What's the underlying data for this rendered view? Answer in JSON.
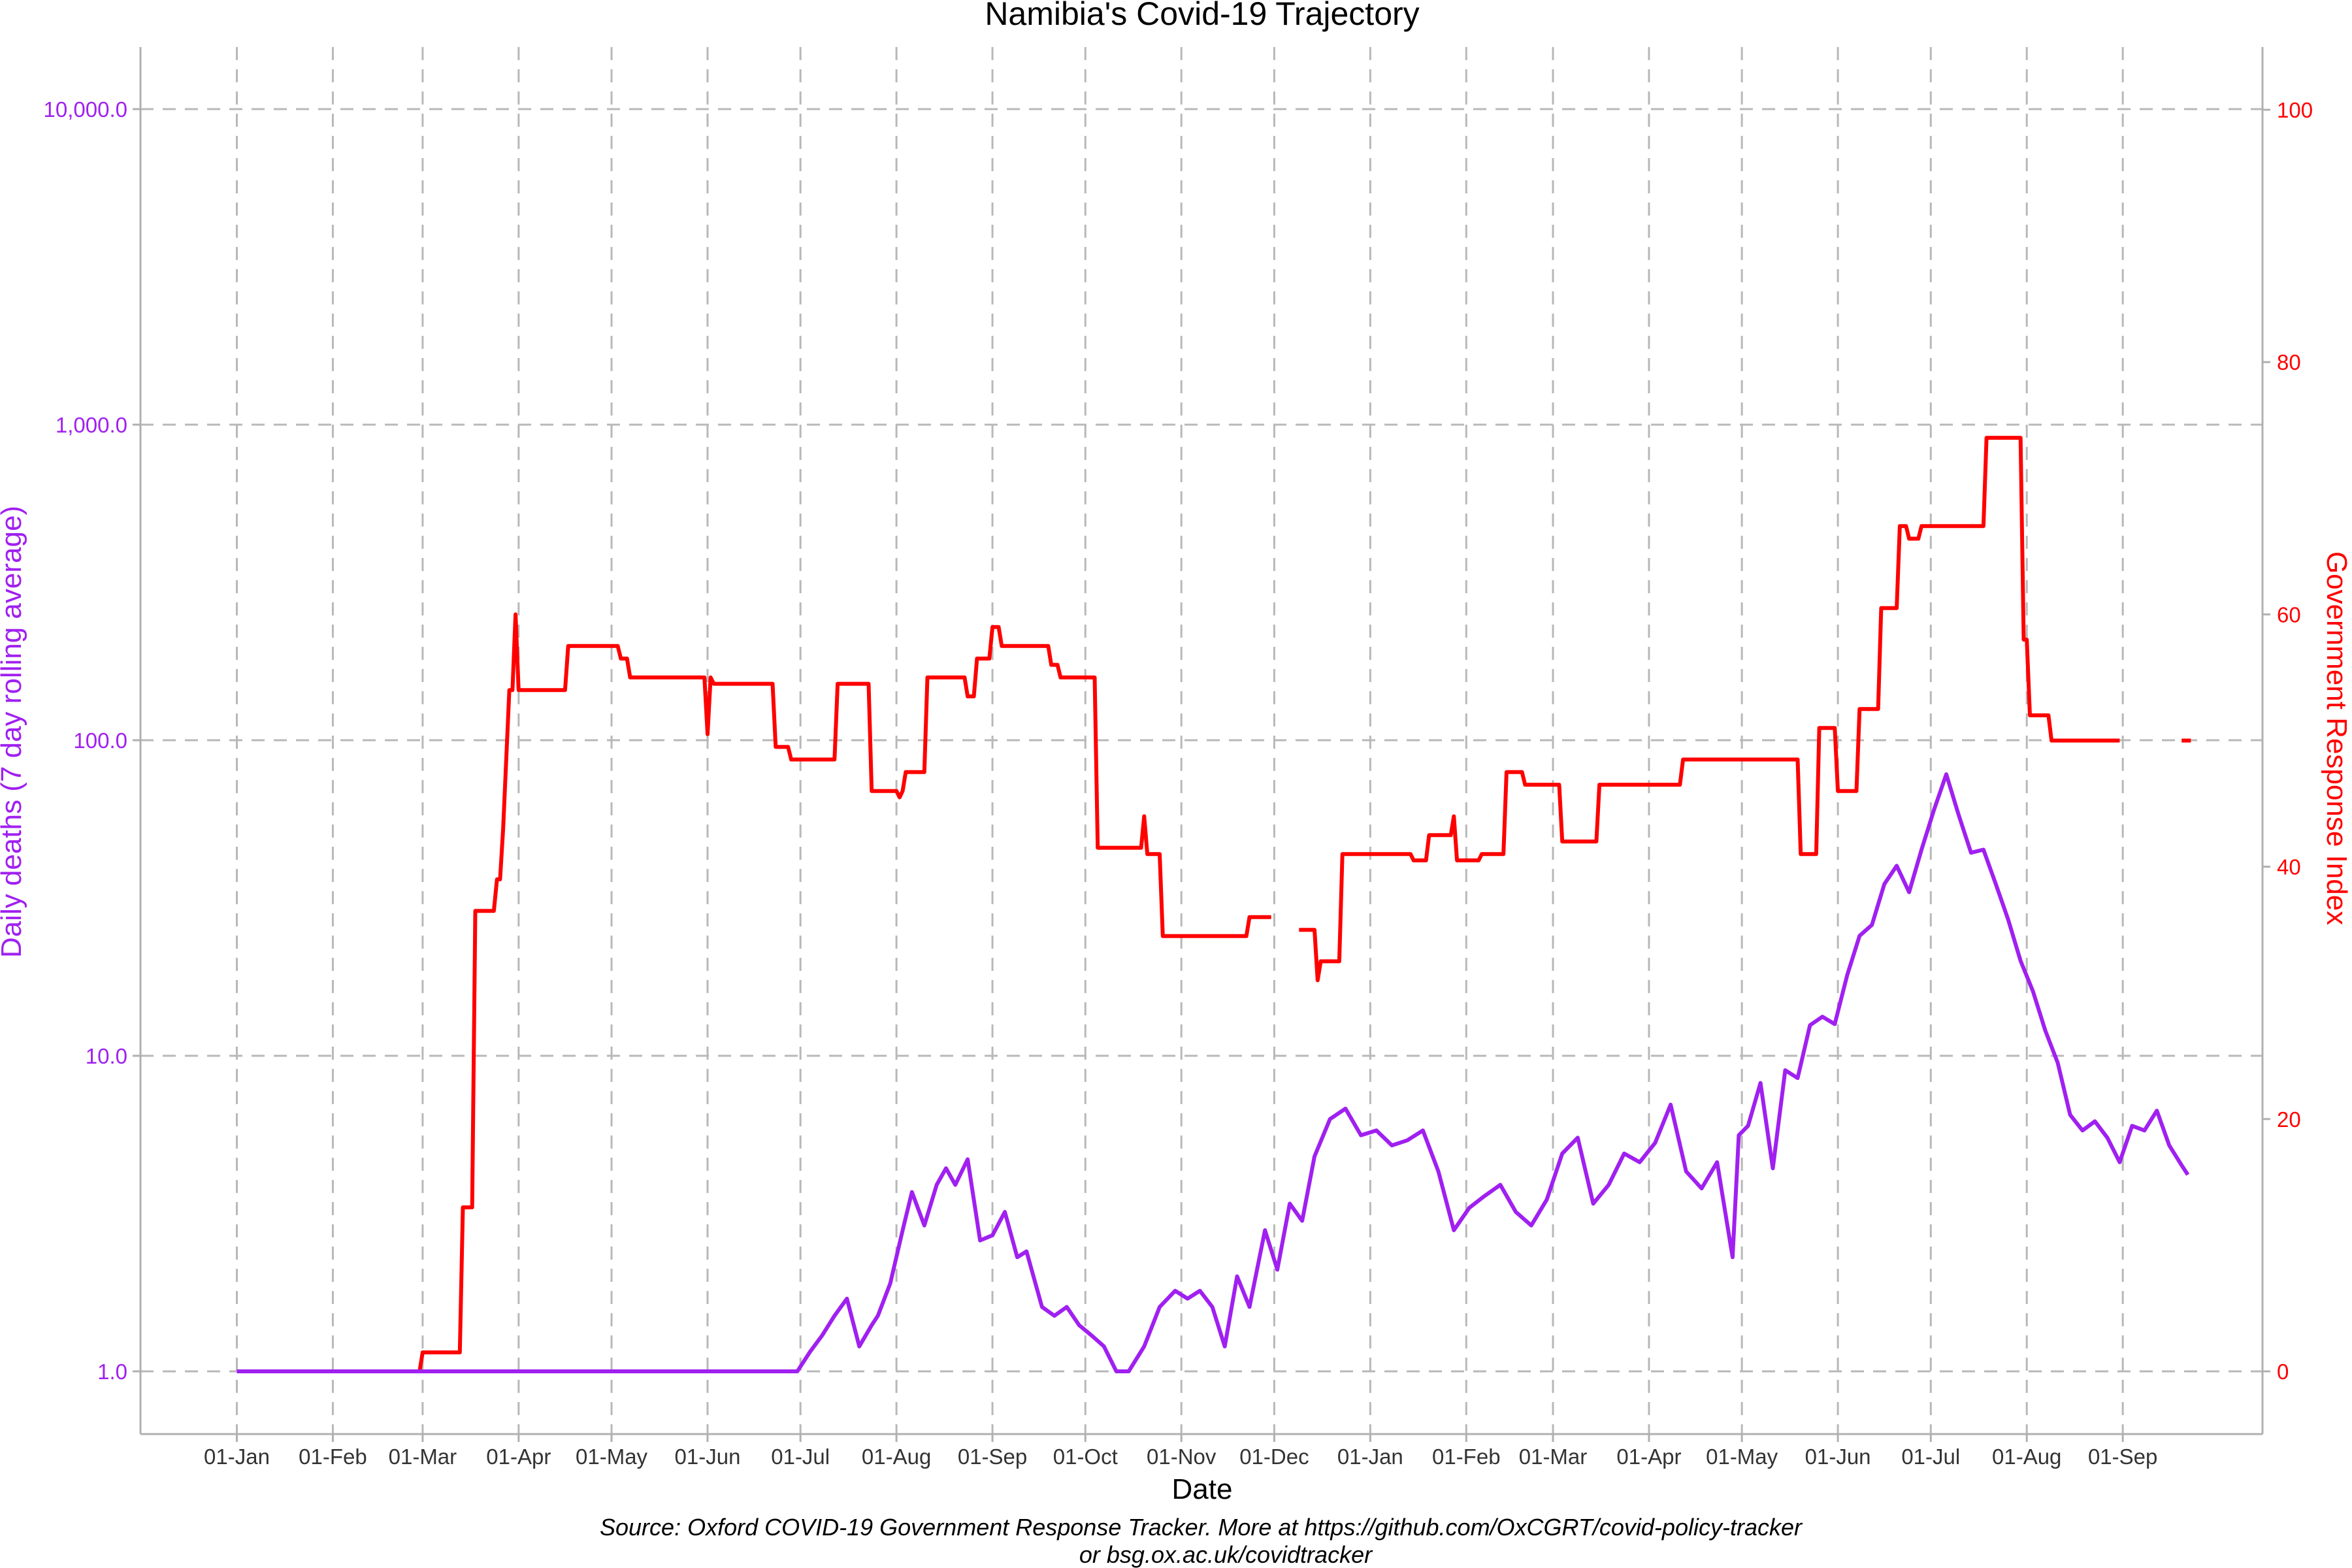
{
  "chart_data": {
    "type": "line",
    "title": "Namibia's Covid-19 Trajectory",
    "xlabel": "Date",
    "ylabel_left": "Daily deaths (7 day rolling average)",
    "ylabel_right": "Government Response Index",
    "caption_line1": "Source: Oxford COVID-19 Government Response Tracker. More at https://github.com/OxCGRT/covid-policy-tracker",
    "caption_line2": "or bsg.ox.ac.uk/covidtracker",
    "grid": true,
    "left_axis": {
      "scale": "log10",
      "color": "#a020f0",
      "ticks": [
        1,
        10,
        100,
        1000,
        10000
      ],
      "tick_labels": [
        "1.0",
        "10.0",
        "100.0",
        "1,000.0",
        "10,000.0"
      ]
    },
    "right_axis": {
      "scale": "linear",
      "color": "#ff0000",
      "range": [
        0,
        100
      ],
      "ticks": [
        0,
        20,
        40,
        60,
        80,
        100
      ],
      "tick_labels": [
        "0",
        "20",
        "40",
        "60",
        "80",
        "100"
      ]
    },
    "x_axis": {
      "tick_dates": [
        "2020-01-01",
        "2020-02-01",
        "2020-03-01",
        "2020-04-01",
        "2020-05-01",
        "2020-06-01",
        "2020-07-01",
        "2020-08-01",
        "2020-09-01",
        "2020-10-01",
        "2020-11-01",
        "2020-12-01",
        "2021-01-01",
        "2021-02-01",
        "2021-03-01",
        "2021-04-01",
        "2021-05-01",
        "2021-06-01",
        "2021-07-01",
        "2021-08-01",
        "2021-09-01"
      ],
      "tick_labels": [
        "01-Jan",
        "01-Feb",
        "01-Mar",
        "01-Apr",
        "01-May",
        "01-Jun",
        "01-Jul",
        "01-Aug",
        "01-Sep",
        "01-Oct",
        "01-Nov",
        "01-Dec",
        "01-Jan",
        "01-Feb",
        "01-Mar",
        "01-Apr",
        "01-May",
        "01-Jun",
        "01-Jul",
        "01-Aug",
        "01-Sep"
      ],
      "range": [
        "2019-12-01",
        "2021-10-25"
      ]
    },
    "series": [
      {
        "axis": "left",
        "color": "#a020f0",
        "x": [
          "2020-01-01",
          "2020-06-30",
          "2020-07-04",
          "2020-07-08",
          "2020-07-12",
          "2020-07-16",
          "2020-07-20",
          "2020-07-24",
          "2020-07-26",
          "2020-07-30",
          "2020-08-03",
          "2020-08-06",
          "2020-08-10",
          "2020-08-14",
          "2020-08-17",
          "2020-08-20",
          "2020-08-24",
          "2020-08-28",
          "2020-09-01",
          "2020-09-05",
          "2020-09-09",
          "2020-09-12",
          "2020-09-17",
          "2020-09-21",
          "2020-09-25",
          "2020-09-29",
          "2020-10-03",
          "2020-10-07",
          "2020-10-11",
          "2020-10-15",
          "2020-10-20",
          "2020-10-25",
          "2020-10-30",
          "2020-11-03",
          "2020-11-07",
          "2020-11-11",
          "2020-11-15",
          "2020-11-19",
          "2020-11-23",
          "2020-11-28",
          "2020-12-02",
          "2020-12-06",
          "2020-12-10",
          "2020-12-14",
          "2020-12-19",
          "2020-12-24",
          "2020-12-29",
          "2021-01-03",
          "2021-01-08",
          "2021-01-13",
          "2021-01-18",
          "2021-01-23",
          "2021-01-28",
          "2021-02-02",
          "2021-02-07",
          "2021-02-12",
          "2021-02-17",
          "2021-02-22",
          "2021-02-27",
          "2021-03-04",
          "2021-03-09",
          "2021-03-14",
          "2021-03-19",
          "2021-03-24",
          "2021-03-29",
          "2021-04-03",
          "2021-04-08",
          "2021-04-13",
          "2021-04-18",
          "2021-04-23",
          "2021-04-28",
          "2021-04-30",
          "2021-05-03",
          "2021-05-07",
          "2021-05-11",
          "2021-05-15",
          "2021-05-19",
          "2021-05-23",
          "2021-05-27",
          "2021-05-31",
          "2021-06-04",
          "2021-06-08",
          "2021-06-12",
          "2021-06-16",
          "2021-06-20",
          "2021-06-24",
          "2021-06-28",
          "2021-07-02",
          "2021-07-06",
          "2021-07-10",
          "2021-07-14",
          "2021-07-18",
          "2021-07-22",
          "2021-07-26",
          "2021-07-30",
          "2021-08-03",
          "2021-08-07",
          "2021-08-11",
          "2021-08-15",
          "2021-08-19",
          "2021-08-23",
          "2021-08-27",
          "2021-08-31",
          "2021-09-04",
          "2021-09-08",
          "2021-09-12",
          "2021-09-16",
          "2021-09-20",
          "2021-09-22"
        ],
        "values": [
          1,
          1,
          1.15,
          1.3,
          1.5,
          1.7,
          1.2,
          1.4,
          1.5,
          1.9,
          2.8,
          3.7,
          2.9,
          3.9,
          4.4,
          3.9,
          4.7,
          2.6,
          2.7,
          3.2,
          2.3,
          2.4,
          1.6,
          1.5,
          1.6,
          1.4,
          1.3,
          1.2,
          1.0,
          1.0,
          1.2,
          1.6,
          1.8,
          1.7,
          1.8,
          1.6,
          1.2,
          2.0,
          1.6,
          2.8,
          2.1,
          3.4,
          3.0,
          4.8,
          6.3,
          6.8,
          5.6,
          5.8,
          5.2,
          5.4,
          5.8,
          4.3,
          2.8,
          3.3,
          3.6,
          3.9,
          3.2,
          2.9,
          3.5,
          4.9,
          5.5,
          3.4,
          3.9,
          4.9,
          4.6,
          5.3,
          7.0,
          4.3,
          3.8,
          4.6,
          2.3,
          5.6,
          6.0,
          8.2,
          4.4,
          9.0,
          8.5,
          12.5,
          13.3,
          12.6,
          18,
          24,
          26,
          35,
          40,
          33,
          45,
          60,
          78,
          58,
          44,
          45,
          35,
          27,
          20,
          16,
          12,
          9.5,
          6.5,
          5.8,
          6.2,
          5.5,
          4.6,
          6.0,
          5.8,
          6.7,
          5.2,
          4.5,
          4.2
        ]
      },
      {
        "axis": "right",
        "color": "#ff0000",
        "segments": [
          {
            "x": [
              "2020-01-01",
              "2020-02-29",
              "2020-03-01",
              "2020-03-13",
              "2020-03-14",
              "2020-03-17",
              "2020-03-18",
              "2020-03-24",
              "2020-03-25",
              "2020-03-26",
              "2020-03-27",
              "2020-03-29",
              "2020-03-30",
              "2020-03-31",
              "2020-04-01",
              "2020-04-02",
              "2020-04-16",
              "2020-04-17",
              "2020-05-03",
              "2020-05-04",
              "2020-05-06",
              "2020-05-07",
              "2020-05-31",
              "2020-06-01",
              "2020-06-02",
              "2020-06-03",
              "2020-06-22",
              "2020-06-23",
              "2020-06-27",
              "2020-06-28",
              "2020-07-12",
              "2020-07-13",
              "2020-07-23",
              "2020-07-24",
              "2020-08-01",
              "2020-08-02",
              "2020-08-03",
              "2020-08-04",
              "2020-08-10",
              "2020-08-11",
              "2020-08-23",
              "2020-08-24",
              "2020-08-26",
              "2020-08-27",
              "2020-08-31",
              "2020-09-01",
              "2020-09-03",
              "2020-09-04",
              "2020-09-19",
              "2020-09-20",
              "2020-09-22",
              "2020-09-23",
              "2020-10-04",
              "2020-10-05",
              "2020-10-19",
              "2020-10-20",
              "2020-10-21",
              "2020-10-25",
              "2020-10-26",
              "2020-11-22",
              "2020-11-23",
              "2020-11-30"
            ],
            "values": [
              0,
              0,
              1.5,
              1.5,
              13,
              13,
              36.5,
              36.5,
              39,
              39,
              43,
              54,
              54,
              60,
              54,
              54,
              54,
              57.5,
              57.5,
              56.5,
              56.5,
              55,
              55,
              50.5,
              55,
              54.5,
              54.5,
              49.5,
              49.5,
              48.5,
              48.5,
              54.5,
              54.5,
              46,
              46,
              45.5,
              46,
              47.5,
              47.5,
              55,
              55,
              53.5,
              53.5,
              56.5,
              56.5,
              59,
              59,
              57.5,
              57.5,
              56,
              56,
              55,
              55,
              41.5,
              41.5,
              44,
              41,
              41,
              34.5,
              34.5,
              36,
              36
            ]
          },
          {
            "x": [
              "2020-12-09",
              "2020-12-14",
              "2020-12-15",
              "2020-12-16",
              "2020-12-17",
              "2020-12-18",
              "2020-12-22",
              "2020-12-23",
              "2021-01-14",
              "2021-01-15",
              "2021-01-19",
              "2021-01-20",
              "2021-01-27",
              "2021-01-28",
              "2021-01-29",
              "2021-02-05",
              "2021-02-06",
              "2021-02-13",
              "2021-02-14",
              "2021-02-19",
              "2021-02-20",
              "2021-03-03",
              "2021-03-04",
              "2021-03-15",
              "2021-03-16",
              "2021-04-11",
              "2021-04-12",
              "2021-05-19",
              "2021-05-20",
              "2021-05-25",
              "2021-05-26",
              "2021-05-31",
              "2021-06-01",
              "2021-06-07",
              "2021-06-08",
              "2021-06-14",
              "2021-06-15",
              "2021-06-20",
              "2021-06-21",
              "2021-06-23",
              "2021-06-24",
              "2021-06-27",
              "2021-06-28",
              "2021-07-18",
              "2021-07-19",
              "2021-07-30",
              "2021-07-31",
              "2021-08-01",
              "2021-08-02",
              "2021-08-08",
              "2021-08-09",
              "2021-08-31"
            ],
            "values": [
              35,
              35,
              31,
              32.5,
              32.5,
              32.5,
              32.5,
              41,
              41,
              40.5,
              40.5,
              42.5,
              42.5,
              44,
              40.5,
              40.5,
              41,
              41,
              47.5,
              47.5,
              46.5,
              46.5,
              42,
              42,
              46.5,
              46.5,
              48.5,
              48.5,
              41,
              41,
              51,
              51,
              46,
              46,
              52.5,
              52.5,
              60.5,
              60.5,
              67,
              67,
              66,
              66,
              67,
              67,
              74,
              74,
              58,
              58,
              52,
              52,
              50,
              50
            ]
          },
          {
            "x": [
              "2021-09-20",
              "2021-09-23"
            ],
            "values": [
              50,
              50
            ]
          }
        ]
      }
    ]
  }
}
